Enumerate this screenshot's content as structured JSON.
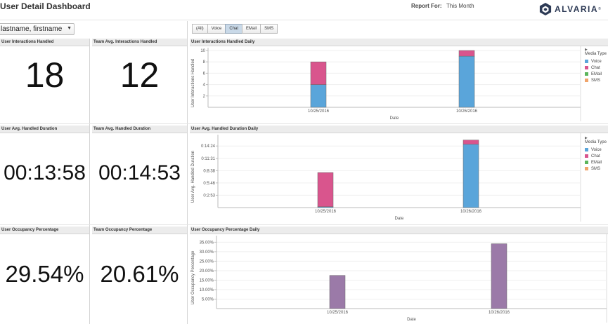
{
  "header": {
    "title": "User Detail Dashboard",
    "report_label": "Report For:",
    "report_value": "This Month",
    "logo_text": "ALVARIA",
    "logo_mark": "®"
  },
  "user_select": {
    "value": "lastname, firstname"
  },
  "media_filter": {
    "options": [
      "(All)",
      "Voice",
      "Chat",
      "EMail",
      "SMS"
    ],
    "selected": "Chat"
  },
  "legend": {
    "title": "Media Type",
    "items": [
      {
        "label": "Voice",
        "color": "#5aa5da"
      },
      {
        "label": "Chat",
        "color": "#d9558d"
      },
      {
        "label": "EMail",
        "color": "#5bb55b"
      },
      {
        "label": "SMS",
        "color": "#f0a46b"
      }
    ]
  },
  "panels": {
    "user_interactions": {
      "title": "User Interactions Handled",
      "value": "18"
    },
    "team_interactions": {
      "title": "Team Avg. Interactions Handled",
      "value": "12"
    },
    "user_duration": {
      "title": "User Avg. Handled Duration",
      "value": "00:13:58"
    },
    "team_duration": {
      "title": "Team Avg. Handled Duration",
      "value": "00:14:53"
    },
    "user_occupancy": {
      "title": "User Occupancy Percentage",
      "value": "29.54%"
    },
    "team_occupancy": {
      "title": "Team Occupancy Percentage",
      "value": "20.61%"
    }
  },
  "chart_titles": {
    "interactions": "User Interactions Handled Daily",
    "duration": "User Avg. Handled Duration Daily",
    "occupancy": "User Occupancy Percentage Daily"
  },
  "chart_data": [
    {
      "type": "bar",
      "stacked": true,
      "title": "User Interactions Handled Daily",
      "xlabel": "Date",
      "ylabel": "User Interactions Handled",
      "categories": [
        "10/25/2016",
        "10/26/2016"
      ],
      "series": [
        {
          "name": "Voice",
          "values": [
            4,
            9
          ],
          "color": "#5aa5da"
        },
        {
          "name": "Chat",
          "values": [
            4,
            1
          ],
          "color": "#d9558d"
        }
      ],
      "ylim": [
        0,
        10
      ],
      "yticks": [
        2,
        4,
        6,
        8,
        10
      ],
      "ytick_labels": [
        "2",
        "4",
        "6",
        "8",
        "10"
      ]
    },
    {
      "type": "bar",
      "stacked": true,
      "title": "User Avg. Handled Duration Daily",
      "xlabel": "Date",
      "ylabel": "User Avg. Handled Duration",
      "categories": [
        "10/25/2016",
        "10/26/2016"
      ],
      "series": [
        {
          "name": "Voice",
          "values": [
            0.2,
            14.8
          ],
          "color": "#5aa5da"
        },
        {
          "name": "Chat",
          "values": [
            8.0,
            1.0
          ],
          "color": "#d9558d"
        }
      ],
      "ylim": [
        0,
        16.4
      ],
      "yticks": [
        2.883,
        5.767,
        8.633,
        11.517,
        14.4
      ],
      "ytick_labels": [
        "0:2:53",
        "0:5:46",
        "0:8:38",
        "0:11:31",
        "0:14:24"
      ]
    },
    {
      "type": "bar",
      "title": "User Occupancy Percentage Daily",
      "xlabel": "Date",
      "ylabel": "User Occupancy Percentage",
      "categories": [
        "10/25/2016",
        "10/26/2016"
      ],
      "series": [
        {
          "name": "",
          "values": [
            17.5,
            34.2
          ],
          "color": "#9b7aa8"
        }
      ],
      "ylim": [
        0,
        37
      ],
      "yticks": [
        5,
        10,
        15,
        20,
        25,
        30,
        35
      ],
      "ytick_labels": [
        "5.00%",
        "10.00%",
        "15.00%",
        "20.00%",
        "25.00%",
        "30.00%",
        "35.00%"
      ]
    }
  ]
}
